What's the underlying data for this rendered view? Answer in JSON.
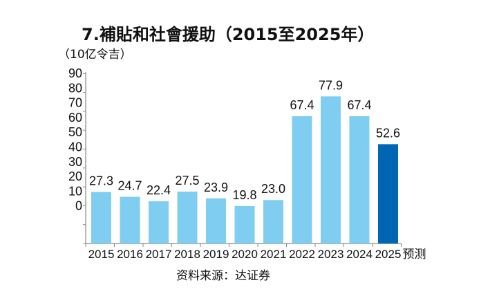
{
  "chart_data": {
    "type": "bar",
    "title": "7.補貼和社會援助（2015至2025年）",
    "ylabel": "（10亿令吉）",
    "categories": [
      "2015",
      "2016",
      "2017",
      "2018",
      "2019",
      "2020",
      "2021",
      "2022",
      "2023",
      "2024",
      "2025"
    ],
    "values": [
      27.3,
      24.7,
      22.4,
      27.5,
      23.9,
      19.8,
      23.0,
      67.4,
      77.9,
      67.4,
      52.6
    ],
    "value_labels": [
      "27.3",
      "24.7",
      "22.4",
      "27.5",
      "23.9",
      "19.8",
      "23.0",
      "67.4",
      "77.9",
      "67.4",
      "52.6"
    ],
    "forecast_label": "预测",
    "ytick_labels": [
      "90",
      "80",
      "70",
      "60",
      "50",
      "40",
      "30",
      "20",
      "10",
      "0"
    ],
    "ylim": [
      0,
      90
    ],
    "grid": false,
    "colors": {
      "actual": "#7fcdf1",
      "forecast": "#0066b3"
    },
    "forecast_index": 10,
    "source": "资料来源：达证券"
  }
}
